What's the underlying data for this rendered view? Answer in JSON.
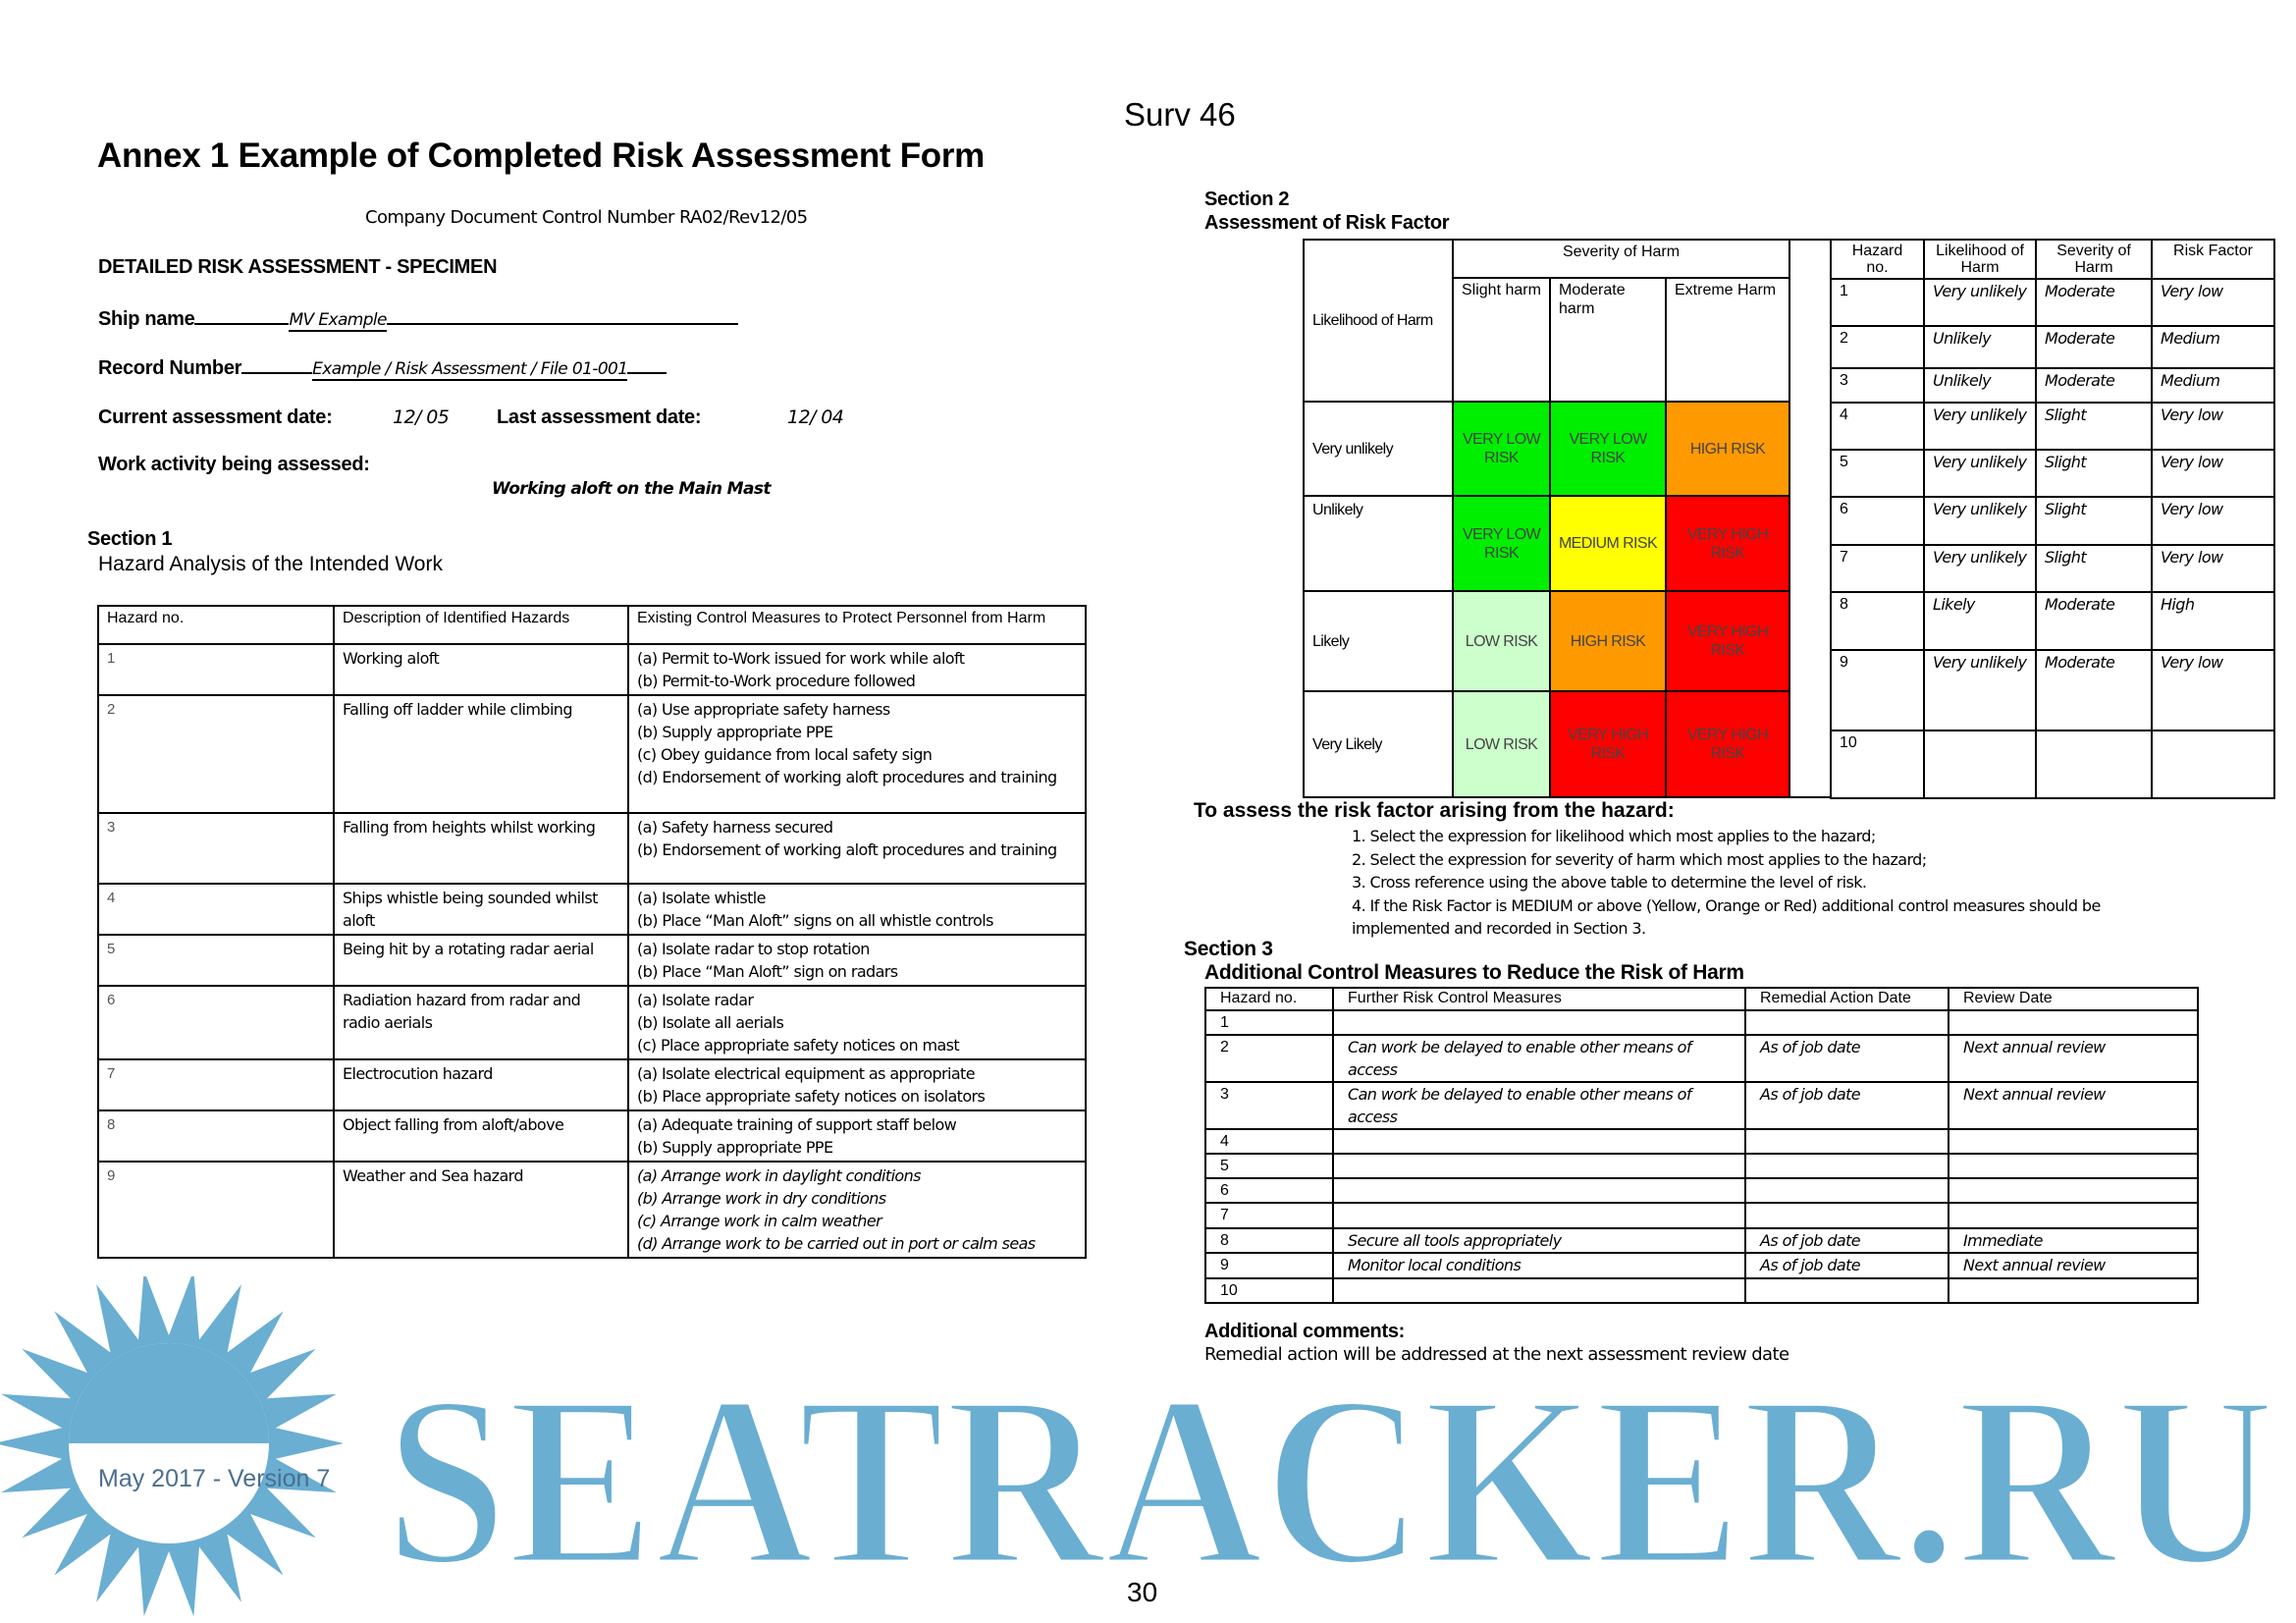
{
  "header": {
    "doc_code": "Surv 46",
    "title": "Annex 1 Example of Completed Risk Assessment Form",
    "control_number": "Company Document Control Number RA02/Rev12/05",
    "form_heading": "DETAILED RISK ASSESSMENT - SPECIMEN",
    "ship_name_label": "Ship name",
    "ship_name_value": "MV Example",
    "record_number_label": "Record Number",
    "record_number_value": "Example / Risk Assessment / File 01-001",
    "current_date_label": "Current assessment date:",
    "current_date_value": "12/ 05",
    "last_date_label": "Last assessment date:",
    "last_date_value": "12/ 04",
    "work_activity_label": "Work activity being assessed:",
    "work_activity_value": "Working aloft on the Main Mast"
  },
  "section1": {
    "label": "Section 1",
    "title": "Hazard Analysis of the Intended Work",
    "headers": [
      "Hazard no.",
      "Description of Identified Hazards",
      "Existing Control Measures to Protect Personnel from Harm"
    ],
    "rows": [
      {
        "no": "1",
        "desc": "Working aloft",
        "measures": [
          "(a) Permit to-Work issued for work while aloft",
          "(b) Permit-to-Work procedure followed"
        ]
      },
      {
        "no": "2",
        "desc": "Falling off ladder while climbing",
        "measures": [
          "(a) Use appropriate safety harness",
          "(b) Supply appropriate PPE",
          "(c) Obey guidance from local safety sign",
          "(d) Endorsement of working aloft procedures and training"
        ]
      },
      {
        "no": "3",
        "desc": "Falling from heights whilst working",
        "measures": [
          "(a) Safety harness secured",
          "(b) Endorsement of working aloft procedures and training"
        ]
      },
      {
        "no": "4",
        "desc": "Ships whistle being sounded whilst aloft",
        "measures": [
          "(a) Isolate whistle",
          "(b) Place “Man Aloft” signs on all whistle controls"
        ]
      },
      {
        "no": "5",
        "desc": "Being hit by a rotating radar aerial",
        "measures": [
          "(a) Isolate radar to stop rotation",
          "(b) Place “Man Aloft” sign on radars"
        ]
      },
      {
        "no": "6",
        "desc": "Radiation hazard from radar and radio aerials",
        "measures": [
          "(a) Isolate radar",
          "(b) Isolate all aerials",
          "(c) Place appropriate safety notices on mast"
        ]
      },
      {
        "no": "7",
        "desc": "Electrocution hazard",
        "measures": [
          "(a) Isolate electrical equipment as appropriate",
          "(b) Place appropriate safety notices on isolators"
        ]
      },
      {
        "no": "8",
        "desc": "Object falling from aloft/above",
        "measures": [
          "(a) Adequate training of support staff below",
          "(b) Supply appropriate PPE"
        ]
      },
      {
        "no": "9",
        "desc": "Weather and Sea hazard",
        "measures": [
          "(a) Arrange work in daylight conditions",
          "(b) Arrange work in dry conditions",
          "(c) Arrange work in calm weather",
          "(d) Arrange work to be carried out in port or calm seas"
        ]
      }
    ]
  },
  "section2": {
    "label": "Section 2",
    "title": "Assessment of Risk Factor",
    "matrix": {
      "corner": "Likelihood of Harm",
      "severity_header": "Severity of Harm",
      "severities": [
        "Slight harm",
        "Moderate harm",
        "Extreme Harm"
      ],
      "rows": [
        {
          "likelihood": "Very unlikely",
          "cells": [
            {
              "text": "VERY LOW RISK",
              "color": "#00ee00"
            },
            {
              "text": "VERY LOW RISK",
              "color": "#00ee00"
            },
            {
              "text": "HIGH RISK",
              "color": "#ff9900"
            }
          ]
        },
        {
          "likelihood": "Unlikely",
          "cells": [
            {
              "text": "VERY LOW RISK",
              "color": "#00ee00"
            },
            {
              "text": "MEDIUM RISK",
              "color": "#ffff00"
            },
            {
              "text": "VERY HIGH RISK",
              "color": "#ff0000"
            }
          ]
        },
        {
          "likelihood": "Likely",
          "cells": [
            {
              "text": "LOW RISK",
              "color": "#ccffcc"
            },
            {
              "text": "HIGH RISK",
              "color": "#ff9900"
            },
            {
              "text": "VERY HIGH RISK",
              "color": "#ff0000"
            }
          ]
        },
        {
          "likelihood": "Very Likely",
          "cells": [
            {
              "text": "LOW RISK",
              "color": "#ccffcc"
            },
            {
              "text": "VERY HIGH RISK",
              "color": "#ff0000"
            },
            {
              "text": "VERY HIGH RISK",
              "color": "#ff0000"
            }
          ]
        }
      ]
    },
    "factor_table": {
      "headers": [
        "Hazard no.",
        "Likelihood of Harm",
        "Severity of Harm",
        "Risk Factor"
      ],
      "rows": [
        [
          "1",
          "Very unlikely",
          "Moderate",
          "Very low"
        ],
        [
          "2",
          "Unlikely",
          "Moderate",
          "Medium"
        ],
        [
          "3",
          "Unlikely",
          "Moderate",
          "Medium"
        ],
        [
          "4",
          "Very unlikely",
          "Slight",
          "Very low"
        ],
        [
          "5",
          "Very unlikely",
          "Slight",
          "Very low"
        ],
        [
          "6",
          "Very unlikely",
          "Slight",
          "Very low"
        ],
        [
          "7",
          "Very unlikely",
          "Slight",
          "Very low"
        ],
        [
          "8",
          "Likely",
          "Moderate",
          "High"
        ],
        [
          "9",
          "Very unlikely",
          "Moderate",
          "Very low"
        ],
        [
          "10",
          "",
          "",
          ""
        ]
      ]
    },
    "instructions_title": "To assess the risk factor arising from the hazard:",
    "instructions": [
      "1. Select the expression for likelihood which most applies to the hazard;",
      "2. Select the expression for severity of harm which most applies to the hazard;",
      "3. Cross reference using the above table to determine the level of risk.",
      "4. If the Risk Factor is MEDIUM or above (Yellow, Orange or Red) additional control measures should be",
      "implemented and recorded in Section 3."
    ]
  },
  "section3": {
    "label": "Section 3",
    "title": "Additional Control Measures to Reduce the Risk of Harm",
    "headers": [
      "Hazard no.",
      "Further Risk Control Measures",
      "Remedial Action Date",
      "Review Date"
    ],
    "rows": [
      [
        "1",
        "",
        "",
        ""
      ],
      [
        "2",
        "Can work be delayed to enable other means of access",
        "As of job date",
        "Next annual review"
      ],
      [
        "3",
        "Can work be delayed to enable other means of access",
        "As of job date",
        "Next annual review"
      ],
      [
        "4",
        "",
        "",
        ""
      ],
      [
        "5",
        "",
        "",
        ""
      ],
      [
        "6",
        "",
        "",
        ""
      ],
      [
        "7",
        "",
        "",
        ""
      ],
      [
        "8",
        "Secure all tools appropriately",
        "As of job date",
        "Immediate"
      ],
      [
        "9",
        "Monitor local conditions",
        "As of job date",
        "Next annual review"
      ],
      [
        "10",
        "",
        "",
        ""
      ]
    ],
    "comments_label": "Additional comments:",
    "comments": "Remedial action will be addressed at the next assessment review date"
  },
  "footer": {
    "version": "May 2017 - Version 7",
    "page_number": "30"
  },
  "watermark": {
    "text": "SEATRACKER.RU",
    "color": "#6aaed2"
  }
}
